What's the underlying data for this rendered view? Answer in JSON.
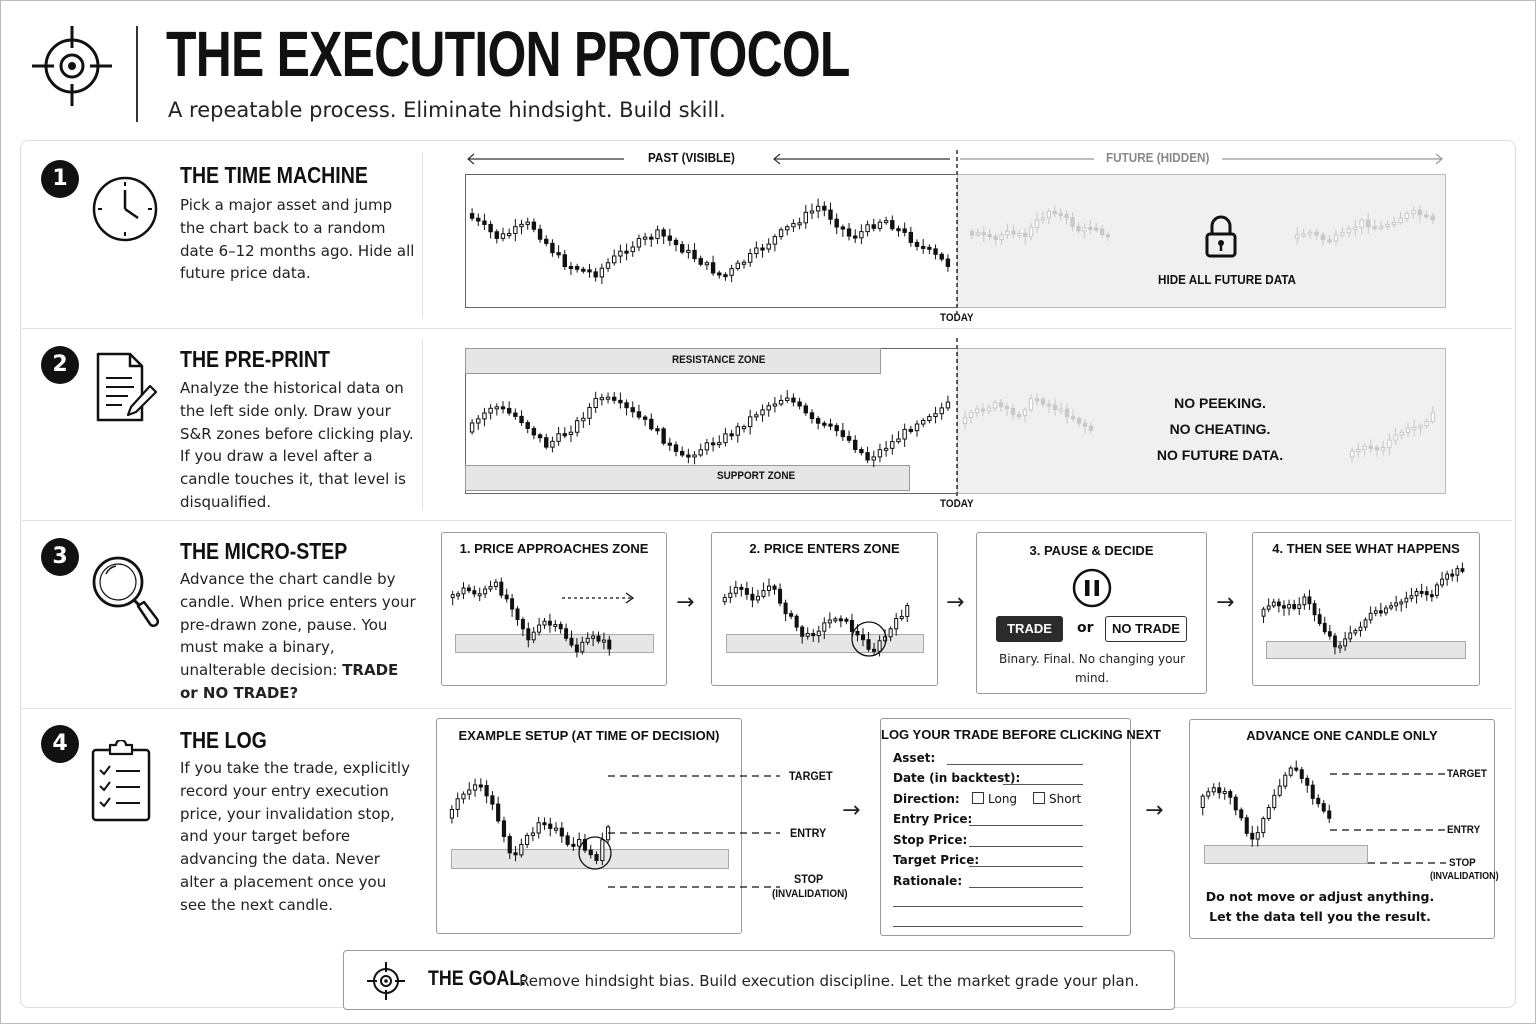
{
  "header": {
    "title": "THE EXECUTION PROTOCOL",
    "subtitle": "A repeatable process. Eliminate hindsight. Build skill."
  },
  "icons": {
    "logo": "crosshair-icon",
    "step1": "clock-icon",
    "step2": "document-pencil-icon",
    "step3": "magnifier-icon",
    "step4": "clipboard-checklist-icon",
    "lock": "lock-icon",
    "pause": "pause-icon",
    "goal": "crosshair-icon"
  },
  "steps": [
    {
      "number": "1",
      "title": "THE TIME MACHINE",
      "text": "Pick a major asset and jump the chart back to a random date 6–12 months ago. Hide all future price data."
    },
    {
      "number": "2",
      "title": "THE PRE-PRINT",
      "text": "Analyze the historical data on the left side only. Draw your S&R zones before clicking play. If you draw a level after a candle touches it, that level is disqualified."
    },
    {
      "number": "3",
      "title": "THE MICRO-STEP",
      "text": "Advance the chart candle by candle. When price enters your pre-drawn zone, pause. You must make a binary, unalterable decision:",
      "text_bold": "TRADE or NO TRADE?"
    },
    {
      "number": "4",
      "title": "THE LOG",
      "text": "If you take the trade, explicitly record your entry execution price, your invalidation stop, and your target before advancing the data. Never alter a placement once you see the next candle."
    }
  ],
  "step1_visual": {
    "past_label": "PAST (VISIBLE)",
    "future_label": "FUTURE (HIDDEN)",
    "hidden_label": "HIDE ALL FUTURE DATA",
    "today_label": "TODAY"
  },
  "step2_visual": {
    "resistance_label": "RESISTANCE ZONE",
    "support_label": "SUPPORT ZONE",
    "today_label": "TODAY",
    "warning_lines": [
      "NO PEEKING.",
      "NO CHEATING.",
      "NO FUTURE DATA."
    ]
  },
  "step3_visual": {
    "panels": [
      {
        "title": "1. PRICE APPROACHES ZONE"
      },
      {
        "title": "2. PRICE ENTERS ZONE"
      },
      {
        "title": "3. PAUSE & DECIDE"
      },
      {
        "title": "4. THEN SEE WHAT HAPPENS"
      }
    ],
    "trade_label": "TRADE",
    "or_label": "or",
    "no_trade_label": "NO TRADE",
    "decision_note": "Binary. Final. No changing your mind."
  },
  "step4_visual": {
    "example_title": "EXAMPLE SETUP (AT TIME OF DECISION)",
    "target_label": "TARGET",
    "entry_label": "ENTRY",
    "stop_label": "STOP",
    "invalidation_label": "(INVALIDATION)",
    "log_title": "LOG YOUR TRADE BEFORE CLICKING NEXT",
    "log_fields": {
      "asset": "Asset:",
      "date": "Date (in backtest):",
      "direction": "Direction:",
      "long": "Long",
      "short": "Short",
      "entry": "Entry Price:",
      "stop": "Stop Price:",
      "target": "Target Price:",
      "rationale": "Rationale:"
    },
    "advance_title": "ADVANCE ONE CANDLE ONLY",
    "advance_note_1": "Do not move or adjust anything.",
    "advance_note_2": "Let the data tell you the result."
  },
  "goal": {
    "label": "THE GOAL:",
    "text": "Remove hindsight bias. Build execution discipline. Let the market grade your plan."
  },
  "colors": {
    "ink": "#111111",
    "zone_fill": "#e6e6e6",
    "hidden_fill": "#f0f0f0",
    "faded_candle": "#c8c8c8",
    "border": "#999999"
  }
}
